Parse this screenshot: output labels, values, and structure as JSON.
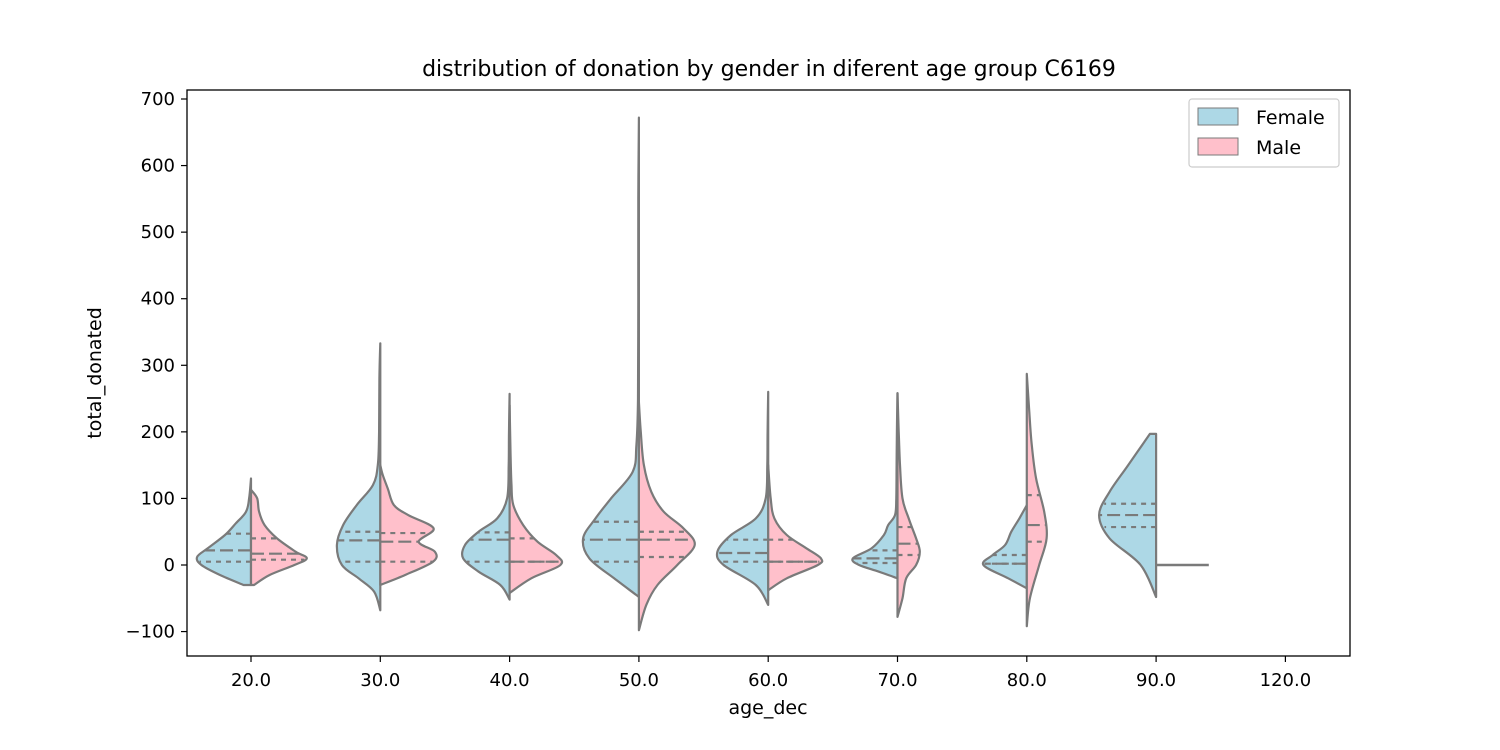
{
  "chart_data": {
    "type": "violin",
    "title": "distribution of donation by gender in diferent age group C6169",
    "xlabel": "age_dec",
    "ylabel": "total_donated",
    "ylim": [
      -135,
      712
    ],
    "yticks": [
      -100,
      0,
      100,
      200,
      300,
      400,
      500,
      600,
      700
    ],
    "ytick_labels": [
      "−100",
      "0",
      "100",
      "200",
      "300",
      "400",
      "500",
      "600",
      "700"
    ],
    "categories": [
      "20.0",
      "30.0",
      "40.0",
      "50.0",
      "60.0",
      "70.0",
      "80.0",
      "90.0",
      "120.0"
    ],
    "split": true,
    "legend": {
      "position": "top-right",
      "entries": [
        "Female",
        "Male"
      ]
    },
    "colors": {
      "Female": "#add8e6",
      "Male": "#ffc0cb",
      "outline": "#7a7a7a"
    },
    "groups": [
      {
        "category": "20.0",
        "female": {
          "min": -30,
          "max": 130,
          "q1": 5,
          "median": 22,
          "q3": 47,
          "profile": [
            [
              -30,
              0.12
            ],
            [
              -15,
              0.5
            ],
            [
              0,
              0.8
            ],
            [
              12,
              0.87
            ],
            [
              25,
              0.7
            ],
            [
              45,
              0.42
            ],
            [
              62,
              0.25
            ],
            [
              80,
              0.08
            ],
            [
              100,
              0.03
            ],
            [
              130,
              0
            ]
          ]
        },
        "male": {
          "min": -30,
          "max": 113,
          "q1": 8,
          "median": 17,
          "q3": 40,
          "profile": [
            [
              -30,
              0.05
            ],
            [
              -15,
              0.3
            ],
            [
              0,
              0.7
            ],
            [
              10,
              0.9
            ],
            [
              20,
              0.72
            ],
            [
              40,
              0.42
            ],
            [
              60,
              0.22
            ],
            [
              80,
              0.13
            ],
            [
              100,
              0.1
            ],
            [
              113,
              0
            ]
          ]
        }
      },
      {
        "category": "30.0",
        "female": {
          "min": -68,
          "max": 333,
          "q1": 5,
          "median": 37,
          "q3": 50,
          "profile": [
            [
              -68,
              0
            ],
            [
              -40,
              0.1
            ],
            [
              -20,
              0.35
            ],
            [
              0,
              0.62
            ],
            [
              30,
              0.7
            ],
            [
              60,
              0.6
            ],
            [
              90,
              0.38
            ],
            [
              120,
              0.12
            ],
            [
              150,
              0.04
            ],
            [
              200,
              0.02
            ],
            [
              280,
              0.015
            ],
            [
              333,
              0
            ]
          ]
        },
        "male": {
          "min": -30,
          "max": 150,
          "q1": 5,
          "median": 35,
          "q3": 48,
          "profile": [
            [
              -30,
              0
            ],
            [
              -15,
              0.4
            ],
            [
              5,
              0.85
            ],
            [
              20,
              0.88
            ],
            [
              35,
              0.62
            ],
            [
              55,
              0.86
            ],
            [
              75,
              0.45
            ],
            [
              90,
              0.22
            ],
            [
              115,
              0.12
            ],
            [
              135,
              0.04
            ],
            [
              150,
              0
            ]
          ]
        }
      },
      {
        "category": "40.0",
        "female": {
          "min": -52,
          "max": 257,
          "q1": 5,
          "median": 38,
          "q3": 49,
          "profile": [
            [
              -52,
              0
            ],
            [
              -30,
              0.15
            ],
            [
              -10,
              0.5
            ],
            [
              10,
              0.75
            ],
            [
              30,
              0.72
            ],
            [
              50,
              0.5
            ],
            [
              70,
              0.2
            ],
            [
              100,
              0.04
            ],
            [
              150,
              0.015
            ],
            [
              200,
              0.01
            ],
            [
              257,
              0
            ]
          ]
        },
        "male": {
          "min": -42,
          "max": 240,
          "q1": 5,
          "median": 5,
          "q3": 40,
          "profile": [
            [
              -42,
              0
            ],
            [
              -20,
              0.35
            ],
            [
              0,
              0.82
            ],
            [
              15,
              0.75
            ],
            [
              35,
              0.45
            ],
            [
              60,
              0.22
            ],
            [
              90,
              0.06
            ],
            [
              120,
              0.03
            ],
            [
              170,
              0.015
            ],
            [
              240,
              0
            ]
          ]
        }
      },
      {
        "category": "50.0",
        "female": {
          "min": -48,
          "max": 672,
          "q1": 5,
          "median": 38,
          "q3": 65,
          "profile": [
            [
              -48,
              0
            ],
            [
              -20,
              0.4
            ],
            [
              10,
              0.8
            ],
            [
              40,
              0.9
            ],
            [
              70,
              0.7
            ],
            [
              100,
              0.45
            ],
            [
              140,
              0.1
            ],
            [
              180,
              0.04
            ],
            [
              250,
              0.015
            ],
            [
              400,
              0.01
            ],
            [
              550,
              0.01
            ],
            [
              672,
              0
            ]
          ]
        },
        "male": {
          "min": -98,
          "max": 245,
          "q1": 12,
          "median": 38,
          "q3": 50,
          "profile": [
            [
              -98,
              0
            ],
            [
              -60,
              0.12
            ],
            [
              -30,
              0.3
            ],
            [
              0,
              0.62
            ],
            [
              30,
              0.9
            ],
            [
              55,
              0.72
            ],
            [
              80,
              0.4
            ],
            [
              110,
              0.2
            ],
            [
              150,
              0.08
            ],
            [
              200,
              0.03
            ],
            [
              245,
              0
            ]
          ]
        }
      },
      {
        "category": "60.0",
        "female": {
          "min": -60,
          "max": 260,
          "q1": 5,
          "median": 18,
          "q3": 38,
          "profile": [
            [
              -60,
              0
            ],
            [
              -30,
              0.2
            ],
            [
              0,
              0.72
            ],
            [
              20,
              0.82
            ],
            [
              45,
              0.6
            ],
            [
              70,
              0.2
            ],
            [
              100,
              0.04
            ],
            [
              150,
              0.015
            ],
            [
              200,
              0.01
            ],
            [
              260,
              0
            ]
          ]
        },
        "male": {
          "min": -38,
          "max": 150,
          "q1": 5,
          "median": 5,
          "q3": 38,
          "profile": [
            [
              -38,
              0
            ],
            [
              -20,
              0.3
            ],
            [
              0,
              0.8
            ],
            [
              10,
              0.85
            ],
            [
              25,
              0.62
            ],
            [
              45,
              0.3
            ],
            [
              70,
              0.1
            ],
            [
              100,
              0.04
            ],
            [
              150,
              0
            ]
          ]
        }
      },
      {
        "category": "70.0",
        "female": {
          "min": -20,
          "max": 258,
          "q1": 3,
          "median": 10,
          "q3": 22,
          "profile": [
            [
              -20,
              0
            ],
            [
              -10,
              0.3
            ],
            [
              0,
              0.62
            ],
            [
              10,
              0.72
            ],
            [
              25,
              0.42
            ],
            [
              45,
              0.22
            ],
            [
              60,
              0.15
            ],
            [
              75,
              0.04
            ],
            [
              100,
              0.02
            ],
            [
              150,
              0.015
            ],
            [
              200,
              0.01
            ],
            [
              258,
              0
            ]
          ]
        },
        "male": {
          "min": -78,
          "max": 258,
          "q1": 15,
          "median": 32,
          "q3": 57,
          "profile": [
            [
              -78,
              0
            ],
            [
              -50,
              0.08
            ],
            [
              -20,
              0.14
            ],
            [
              0,
              0.3
            ],
            [
              20,
              0.36
            ],
            [
              40,
              0.3
            ],
            [
              70,
              0.18
            ],
            [
              100,
              0.08
            ],
            [
              150,
              0.04
            ],
            [
              200,
              0.02
            ],
            [
              258,
              0
            ]
          ]
        }
      },
      {
        "category": "80.0",
        "female": {
          "min": -35,
          "max": 90,
          "q1": 2,
          "median": 2,
          "q3": 15,
          "profile": [
            [
              -35,
              0
            ],
            [
              -20,
              0.3
            ],
            [
              0,
              0.7
            ],
            [
              15,
              0.55
            ],
            [
              30,
              0.35
            ],
            [
              50,
              0.25
            ],
            [
              70,
              0.12
            ],
            [
              90,
              0
            ]
          ]
        },
        "male": {
          "min": -92,
          "max": 287,
          "q1": 35,
          "median": 60,
          "q3": 105,
          "profile": [
            [
              -92,
              0
            ],
            [
              -50,
              0.05
            ],
            [
              0,
              0.2
            ],
            [
              40,
              0.32
            ],
            [
              80,
              0.28
            ],
            [
              130,
              0.15
            ],
            [
              180,
              0.08
            ],
            [
              230,
              0.04
            ],
            [
              287,
              0
            ]
          ]
        }
      },
      {
        "category": "90.0",
        "female": {
          "min": -48,
          "max": 197,
          "q1": 57,
          "median": 75,
          "q3": 92,
          "profile": [
            [
              -48,
              0
            ],
            [
              0,
              0.25
            ],
            [
              40,
              0.75
            ],
            [
              75,
              0.92
            ],
            [
              110,
              0.75
            ],
            [
              150,
              0.45
            ],
            [
              197,
              0.1
            ]
          ]
        },
        "male": {
          "min": 0,
          "max": 0,
          "q1": 0,
          "median": 0,
          "q3": 0,
          "flat_width": 0.42,
          "profile": []
        }
      },
      {
        "category": "120.0",
        "female": null,
        "male": null
      }
    ]
  }
}
